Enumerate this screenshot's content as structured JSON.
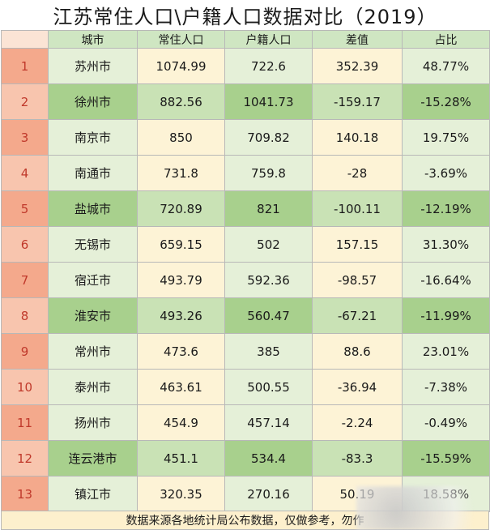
{
  "title": "江苏常住人口\\户籍人口数据对比（2019）",
  "headers": [
    "",
    "城市",
    "常住人口",
    "户籍人口",
    "差值",
    "占比"
  ],
  "rows": [
    {
      "n": "1",
      "city": "苏州市",
      "resident": "1074.99",
      "registered": "722.6",
      "diff": "352.39",
      "ratio": "48.77%"
    },
    {
      "n": "2",
      "city": "徐州市",
      "resident": "882.56",
      "registered": "1041.73",
      "diff": "-159.17",
      "ratio": "-15.28%"
    },
    {
      "n": "3",
      "city": "南京市",
      "resident": "850",
      "registered": "709.82",
      "diff": "140.18",
      "ratio": "19.75%"
    },
    {
      "n": "4",
      "city": "南通市",
      "resident": "731.8",
      "registered": "759.8",
      "diff": "-28",
      "ratio": "-3.69%"
    },
    {
      "n": "5",
      "city": "盐城市",
      "resident": "720.89",
      "registered": "821",
      "diff": "-100.11",
      "ratio": "-12.19%"
    },
    {
      "n": "6",
      "city": "无锡市",
      "resident": "659.15",
      "registered": "502",
      "diff": "157.15",
      "ratio": "31.30%"
    },
    {
      "n": "7",
      "city": "宿迁市",
      "resident": "493.79",
      "registered": "592.36",
      "diff": "-98.57",
      "ratio": "-16.64%"
    },
    {
      "n": "8",
      "city": "淮安市",
      "resident": "493.26",
      "registered": "560.47",
      "diff": "-67.21",
      "ratio": "-11.99%"
    },
    {
      "n": "9",
      "city": "常州市",
      "resident": "473.6",
      "registered": "385",
      "diff": "88.6",
      "ratio": "23.01%"
    },
    {
      "n": "10",
      "city": "泰州市",
      "resident": "463.61",
      "registered": "500.55",
      "diff": "-36.94",
      "ratio": "-7.38%"
    },
    {
      "n": "11",
      "city": "扬州市",
      "resident": "454.9",
      "registered": "457.14",
      "diff": "-2.24",
      "ratio": "-0.49%"
    },
    {
      "n": "12",
      "city": "连云港市",
      "resident": "451.1",
      "registered": "534.4",
      "diff": "-83.3",
      "ratio": "-15.59%"
    },
    {
      "n": "13",
      "city": "镇江市",
      "resident": "320.35",
      "registered": "270.16",
      "diff": "50.19",
      "ratio": "18.58%"
    }
  ],
  "footer": "数据来源各地统计局公布数据，仅做参考，勿作",
  "colors": {
    "index_cell": "#f4a98c",
    "index_text": "#c0392b",
    "header_bg": "#cfe6c2",
    "row_light": "#e5f0d8",
    "row_dark": "#a8d08d"
  }
}
